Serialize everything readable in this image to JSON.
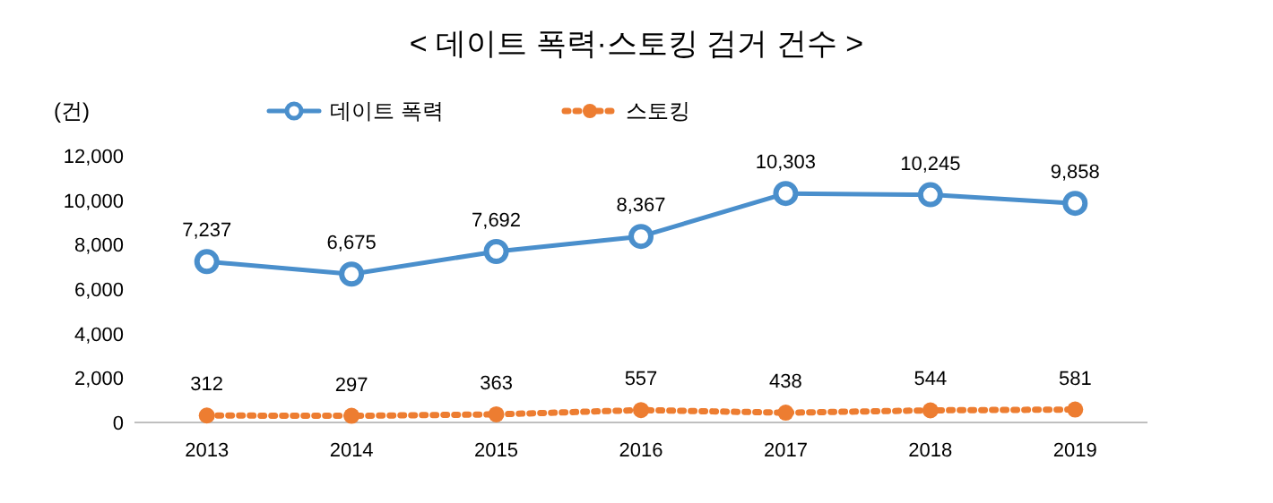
{
  "chart_data": {
    "type": "line",
    "title": "< 데이트 폭력·스토킹 검거 건수 >",
    "ylabel": "(건)",
    "categories": [
      "2013",
      "2014",
      "2015",
      "2016",
      "2017",
      "2018",
      "2019"
    ],
    "series": [
      {
        "name": "데이트 폭력",
        "color": "#4a8fcc",
        "line_style": "solid",
        "values": [
          7237,
          6675,
          7692,
          8367,
          10303,
          10245,
          9858
        ],
        "value_labels": [
          "7,237",
          "6,675",
          "7,692",
          "8,367",
          "10,303",
          "10,245",
          "9,858"
        ]
      },
      {
        "name": "스토킹",
        "color": "#ed7d31",
        "line_style": "dotted",
        "values": [
          312,
          297,
          363,
          557,
          438,
          544,
          581
        ],
        "value_labels": [
          "312",
          "297",
          "363",
          "557",
          "438",
          "544",
          "581"
        ]
      }
    ],
    "ylim": [
      0,
      12000
    ],
    "yticks": [
      0,
      {
        "value": 2000,
        "label": "2,000"
      },
      {
        "value": 4000,
        "label": "4,000"
      },
      {
        "value": 6000,
        "label": "6,000"
      },
      {
        "value": 8000,
        "label": "8,000"
      },
      {
        "value": 10000,
        "label": "10,000"
      },
      {
        "value": 12000,
        "label": "12,000"
      }
    ],
    "marker": "circle",
    "legend": "top"
  }
}
